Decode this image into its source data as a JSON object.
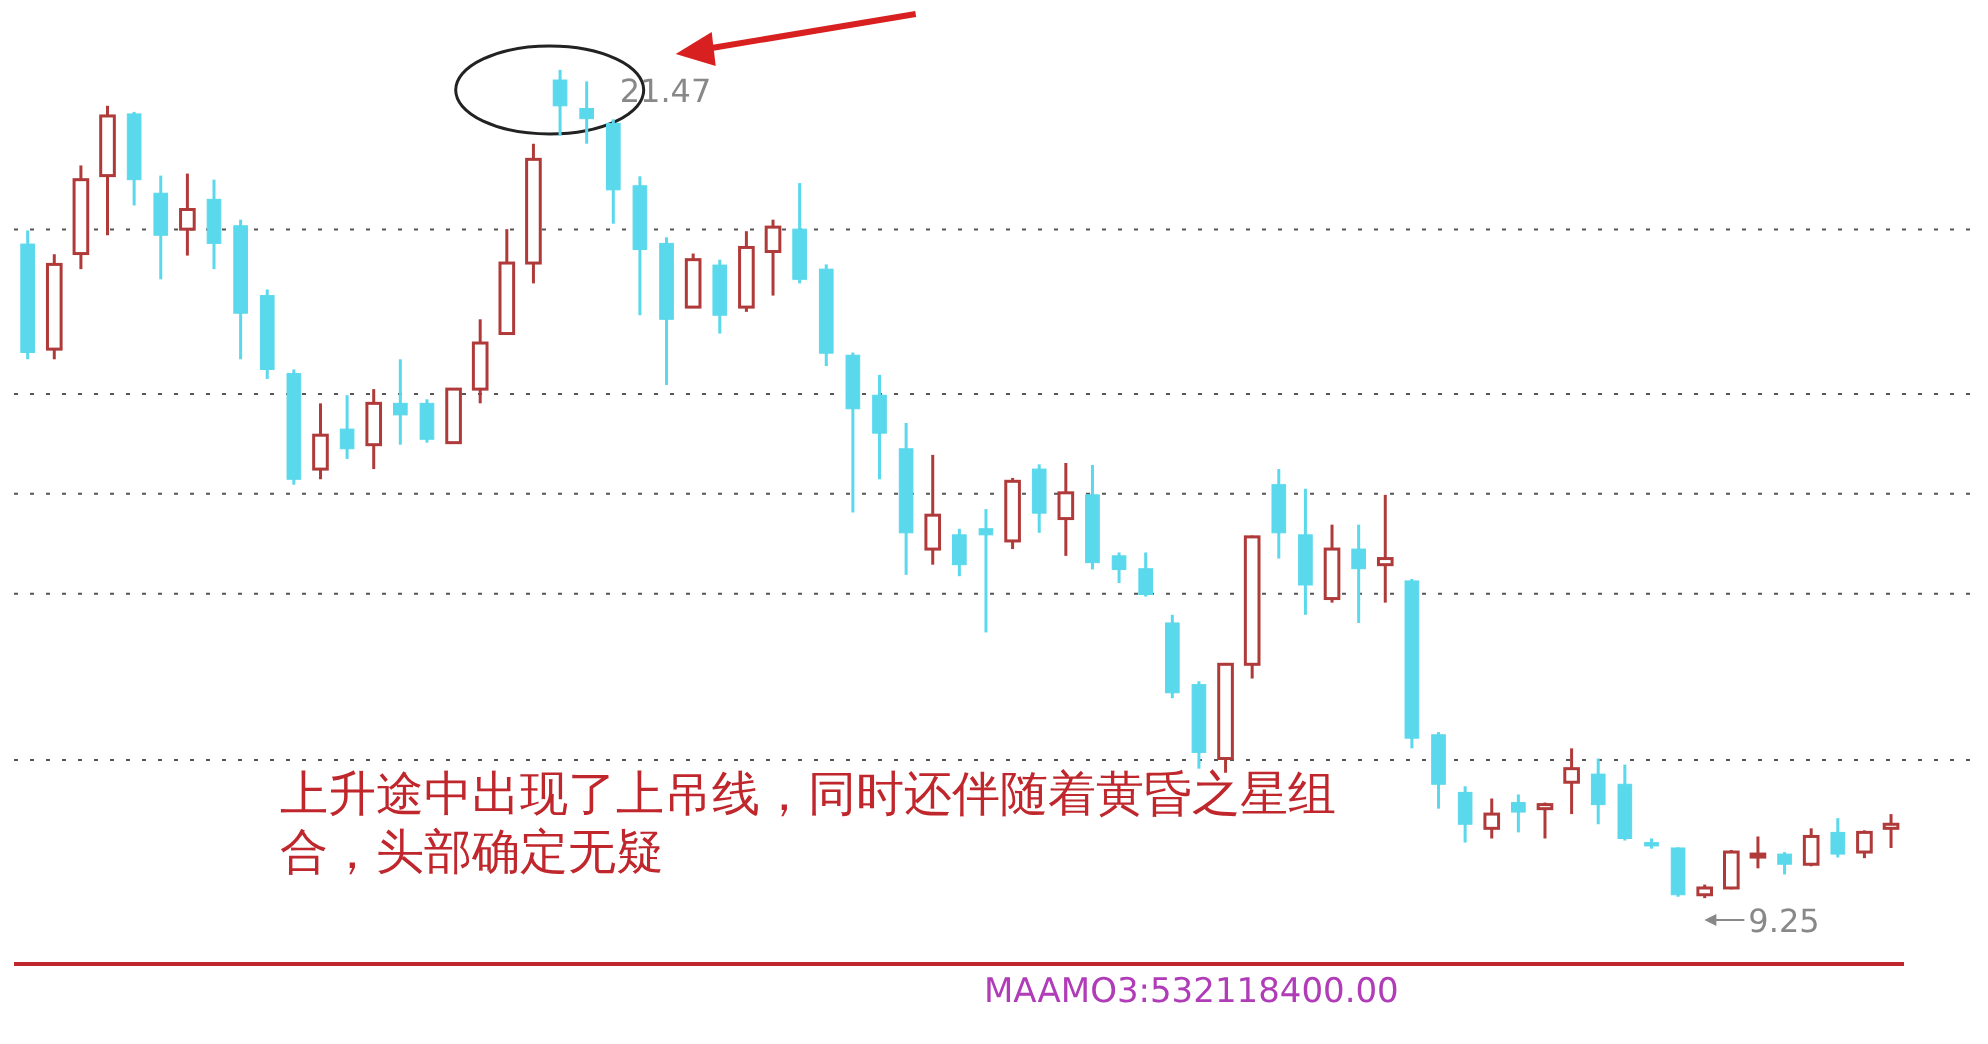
{
  "chart_data": {
    "type": "candlestick",
    "categories": [
      null,
      null,
      null,
      null,
      null,
      null,
      null,
      null,
      null,
      null,
      null,
      null,
      null,
      null,
      null,
      null,
      null,
      null,
      null,
      null,
      null,
      null,
      null,
      null,
      null,
      null,
      null,
      null,
      null,
      null,
      null,
      null,
      null,
      null,
      null,
      null,
      null,
      null,
      null,
      null,
      null,
      null,
      null,
      null,
      null,
      null,
      null,
      null,
      null,
      null,
      null,
      null,
      null,
      null,
      null,
      null,
      null,
      null,
      null,
      null,
      null,
      null,
      null,
      null,
      null,
      null,
      null,
      null,
      null,
      null,
      null
    ],
    "ohlc": [
      [
        18.9,
        19.1,
        17.2,
        17.3
      ],
      [
        17.35,
        18.75,
        17.2,
        18.6
      ],
      [
        18.76,
        20.06,
        18.53,
        19.85
      ],
      [
        19.91,
        20.94,
        19.03,
        20.79
      ],
      [
        20.82,
        20.85,
        19.47,
        19.85
      ],
      [
        19.65,
        19.91,
        18.38,
        19.03
      ],
      [
        19.12,
        19.94,
        18.73,
        19.41
      ],
      [
        19.56,
        19.85,
        18.53,
        18.91
      ],
      [
        19.17,
        19.26,
        17.2,
        17.88
      ],
      [
        18.14,
        18.23,
        16.91,
        17.05
      ],
      [
        16.99,
        17.05,
        15.35,
        15.43
      ],
      [
        15.58,
        16.55,
        15.43,
        16.08
      ],
      [
        16.17,
        16.67,
        15.73,
        15.88
      ],
      [
        15.94,
        16.76,
        15.58,
        16.55
      ],
      [
        16.55,
        17.2,
        15.94,
        16.38
      ],
      [
        16.55,
        16.61,
        15.97,
        16.02
      ],
      [
        15.97,
        16.76,
        15.97,
        16.76
      ],
      [
        16.76,
        17.79,
        16.55,
        17.44
      ],
      [
        17.58,
        19.12,
        17.58,
        18.62
      ],
      [
        18.62,
        20.38,
        18.32,
        20.15
      ],
      [
        21.32,
        21.47,
        20.5,
        20.94
      ],
      [
        20.9,
        21.3,
        20.38,
        20.75
      ],
      [
        20.68,
        20.74,
        19.2,
        19.7
      ],
      [
        19.76,
        19.9,
        17.85,
        18.82
      ],
      [
        18.91,
        19.0,
        16.82,
        17.79
      ],
      [
        17.97,
        18.76,
        17.97,
        18.67
      ],
      [
        18.59,
        18.67,
        17.58,
        17.85
      ],
      [
        17.97,
        19.09,
        17.9,
        18.85
      ],
      [
        18.79,
        19.26,
        18.14,
        19.15
      ],
      [
        19.12,
        19.8,
        18.32,
        18.38
      ],
      [
        18.53,
        18.6,
        17.1,
        17.29
      ],
      [
        17.26,
        17.3,
        14.94,
        16.47
      ],
      [
        16.67,
        16.97,
        15.43,
        16.11
      ],
      [
        15.88,
        16.26,
        14.02,
        14.64
      ],
      [
        14.4,
        15.79,
        14.17,
        14.9
      ],
      [
        14.61,
        14.7,
        14.0,
        14.17
      ],
      [
        14.7,
        14.99,
        13.17,
        14.61
      ],
      [
        14.52,
        15.45,
        14.4,
        15.4
      ],
      [
        15.58,
        15.65,
        14.64,
        14.93
      ],
      [
        14.85,
        15.67,
        14.3,
        15.23
      ],
      [
        15.2,
        15.64,
        14.1,
        14.2
      ],
      [
        14.3,
        14.35,
        13.9,
        14.1
      ],
      [
        14.11,
        14.35,
        13.7,
        13.73
      ],
      [
        13.31,
        13.43,
        12.2,
        12.28
      ],
      [
        12.4,
        12.45,
        11.16,
        11.4
      ],
      [
        11.31,
        12.72,
        11.1,
        12.7
      ],
      [
        12.7,
        14.6,
        12.49,
        14.58
      ],
      [
        15.35,
        15.58,
        14.26,
        14.64
      ],
      [
        14.61,
        15.29,
        13.43,
        13.87
      ],
      [
        13.67,
        14.76,
        13.61,
        14.4
      ],
      [
        14.4,
        14.76,
        13.31,
        14.11
      ],
      [
        14.17,
        15.2,
        13.61,
        14.26
      ],
      [
        13.93,
        13.96,
        11.46,
        11.61
      ],
      [
        11.66,
        11.7,
        10.57,
        10.93
      ],
      [
        10.81,
        10.9,
        10.07,
        10.34
      ],
      [
        10.28,
        10.72,
        10.13,
        10.49
      ],
      [
        10.66,
        10.78,
        10.22,
        10.52
      ],
      [
        10.57,
        10.66,
        10.13,
        10.63
      ],
      [
        10.96,
        11.46,
        10.49,
        11.16
      ],
      [
        11.08,
        11.31,
        10.34,
        10.63
      ],
      [
        10.93,
        11.22,
        10.1,
        10.13
      ],
      [
        10.07,
        10.13,
        9.98,
        10.02
      ],
      [
        9.99,
        10.0,
        9.27,
        9.3
      ],
      [
        9.3,
        9.45,
        9.25,
        9.4
      ],
      [
        9.4,
        9.96,
        9.38,
        9.93
      ],
      [
        9.88,
        10.16,
        9.69,
        9.9
      ],
      [
        9.9,
        9.93,
        9.6,
        9.75
      ],
      [
        9.75,
        10.28,
        9.72,
        10.16
      ],
      [
        10.22,
        10.43,
        9.85,
        9.9
      ],
      [
        9.93,
        10.25,
        9.84,
        10.22
      ],
      [
        10.28,
        10.49,
        9.99,
        10.34
      ]
    ],
    "colors": [
      "#5ad8ec",
      "#b03a3a",
      "#b03a3a",
      "#b03a3a",
      "#5ad8ec",
      "#5ad8ec",
      "#b03a3a",
      "#5ad8ec",
      "#5ad8ec",
      "#5ad8ec",
      "#5ad8ec",
      "#b03a3a",
      "#5ad8ec",
      "#b03a3a",
      "#5ad8ec",
      "#5ad8ec",
      "#b03a3a",
      "#b03a3a",
      "#b03a3a",
      "#b03a3a",
      "#5ad8ec",
      "#5ad8ec",
      "#5ad8ec",
      "#5ad8ec",
      "#5ad8ec",
      "#b03a3a",
      "#5ad8ec",
      "#b03a3a",
      "#b03a3a",
      "#5ad8ec",
      "#5ad8ec",
      "#5ad8ec",
      "#5ad8ec",
      "#5ad8ec",
      "#b03a3a",
      "#5ad8ec",
      "#5ad8ec",
      "#b03a3a",
      "#5ad8ec",
      "#b03a3a",
      "#5ad8ec",
      "#5ad8ec",
      "#5ad8ec",
      "#5ad8ec",
      "#5ad8ec",
      "#b03a3a",
      "#b03a3a",
      "#5ad8ec",
      "#5ad8ec",
      "#b03a3a",
      "#5ad8ec",
      "#b03a3a",
      "#5ad8ec",
      "#5ad8ec",
      "#5ad8ec",
      "#b03a3a",
      "#5ad8ec",
      "#b03a3a",
      "#b03a3a",
      "#5ad8ec",
      "#5ad8ec",
      "#5ad8ec",
      "#5ad8ec",
      "#b03a3a",
      "#b03a3a",
      "#b03a3a",
      "#5ad8ec",
      "#b03a3a",
      "#5ad8ec",
      "#b03a3a",
      "#b03a3a"
    ],
    "yticks": [
      {
        "value": 19.12,
        "label": null
      },
      {
        "value": 16.7,
        "label": null
      },
      {
        "value": 15.23,
        "label": null
      },
      {
        "value": 13.76,
        "label": null
      },
      {
        "value": 11.31,
        "label": null
      }
    ],
    "grid": "y",
    "annotations": [
      "上升途中出现了上吊线，同时还伴随着黄昏之星组合，头部确定无疑",
      "MAAMO3:532118400.00",
      "21.47",
      "9.25"
    ]
  }
}
